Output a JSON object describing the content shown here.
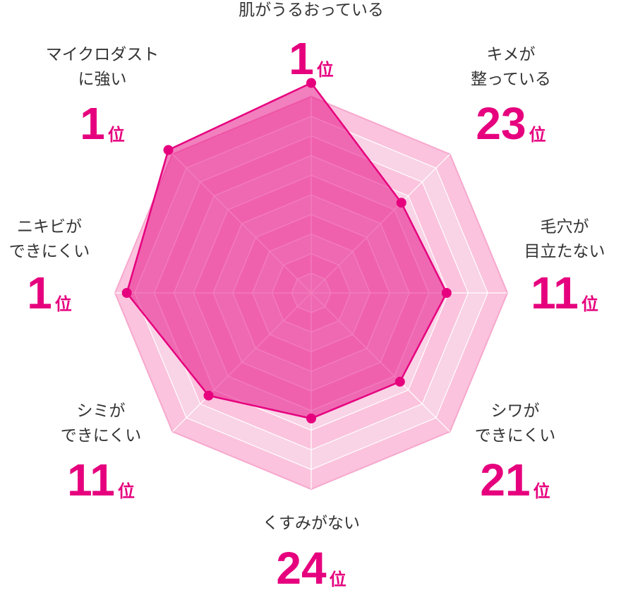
{
  "chart_data": {
    "type": "radar",
    "categories": [
      [
        "肌がうるおっている"
      ],
      [
        "キメが",
        "整っている"
      ],
      [
        "毛穴が",
        "目立たない"
      ],
      [
        "シワが",
        "できにくい"
      ],
      [
        "くすみがない"
      ],
      [
        "シミが",
        "できにくい"
      ],
      [
        "ニキビが",
        "できにくい"
      ],
      [
        "マイクロダスト",
        "に強い"
      ]
    ],
    "values": [
      10.7,
      6.5,
      6.9,
      6.4,
      6.4,
      7.4,
      9.4,
      10.3
    ],
    "ranks": [
      1,
      23,
      11,
      21,
      24,
      11,
      1,
      1
    ],
    "rank_suffix": "位",
    "color": "#e6007e",
    "ylim": [
      0,
      10
    ],
    "yticks": [
      1,
      2,
      3,
      4,
      5,
      6,
      7,
      8,
      9,
      10
    ],
    "grid": true
  }
}
